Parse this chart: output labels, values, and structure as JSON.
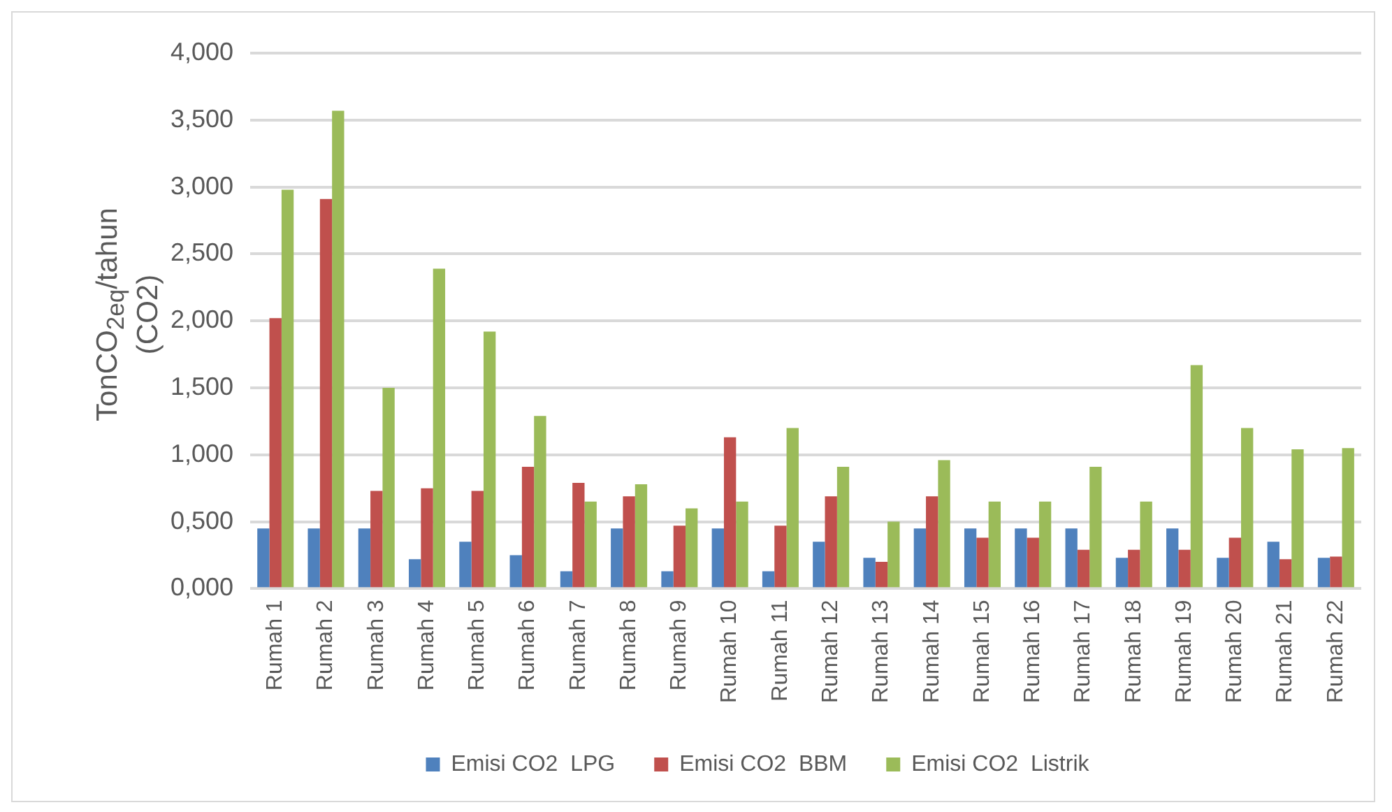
{
  "chart_data": {
    "type": "bar",
    "ylabel": "TonCO$_{2eq}$/tahun\n(CO2)",
    "categories": [
      "Rumah 1",
      "Rumah 2",
      "Rumah 3",
      "Rumah 4",
      "Rumah 5",
      "Rumah 6",
      "Rumah 7",
      "Rumah 8",
      "Rumah 9",
      "Rumah 10",
      "Rumah 11",
      "Rumah 12",
      "Rumah 13",
      "Rumah 14",
      "Rumah 15",
      "Rumah 16",
      "Rumah 17",
      "Rumah 18",
      "Rumah 19",
      "Rumah 20",
      "Rumah 21",
      "Rumah 22"
    ],
    "series": [
      {
        "name": "Emisi CO2  LPG",
        "color": "#4f81bd",
        "values": [
          0.45,
          0.45,
          0.45,
          0.22,
          0.35,
          0.25,
          0.13,
          0.45,
          0.13,
          0.45,
          0.13,
          0.35,
          0.23,
          0.45,
          0.45,
          0.45,
          0.45,
          0.23,
          0.45,
          0.23,
          0.35,
          0.23
        ]
      },
      {
        "name": "Emisi CO2  BBM",
        "color": "#c0504d",
        "values": [
          2.02,
          2.91,
          0.73,
          0.75,
          0.73,
          0.91,
          0.79,
          0.69,
          0.47,
          1.13,
          0.47,
          0.69,
          0.2,
          0.69,
          0.38,
          0.38,
          0.29,
          0.29,
          0.29,
          0.38,
          0.22,
          0.24
        ]
      },
      {
        "name": "Emisi CO2  Listrik",
        "color": "#9bbb59",
        "values": [
          2.98,
          3.57,
          1.5,
          2.39,
          1.92,
          1.29,
          0.65,
          0.78,
          0.6,
          0.65,
          1.2,
          0.91,
          0.5,
          0.96,
          0.65,
          0.65,
          0.91,
          0.65,
          1.67,
          1.2,
          1.04,
          1.05
        ]
      }
    ],
    "ylim": [
      0,
      4
    ],
    "yticks": [
      {
        "value": 0,
        "label": "0,000"
      },
      {
        "value": 0.5,
        "label": "0,500"
      },
      {
        "value": 1,
        "label": "1,000"
      },
      {
        "value": 1.5,
        "label": "1,500"
      },
      {
        "value": 2,
        "label": "2,000"
      },
      {
        "value": 2.5,
        "label": "2,500"
      },
      {
        "value": 3,
        "label": "3,000"
      },
      {
        "value": 3.5,
        "label": "3,500"
      },
      {
        "value": 4,
        "label": "4,000"
      }
    ],
    "grid": "y",
    "legend": "bottom"
  }
}
